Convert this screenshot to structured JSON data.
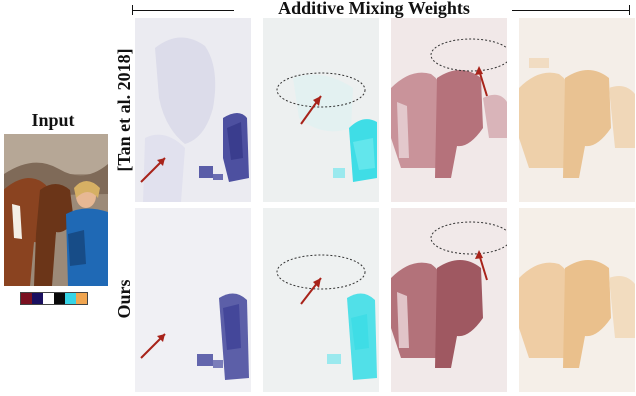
{
  "header": {
    "title": "Additive Mixing Weights"
  },
  "input": {
    "title": "Input",
    "palette_colors": [
      "#7a1020",
      "#1a1060",
      "#ffffff",
      "#0a0a0a",
      "#36d4e6",
      "#f0a550"
    ]
  },
  "rows": [
    {
      "label": "[Tan et al. 2018]"
    },
    {
      "label": "Ours"
    }
  ],
  "layer_colors": [
    "#5c5fa8",
    "#3fdde6",
    "#a45a62",
    "#e9b478"
  ],
  "annotation_color": "#a8231a"
}
